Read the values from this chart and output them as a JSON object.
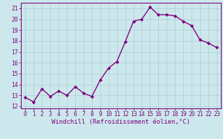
{
  "x": [
    0,
    1,
    2,
    3,
    4,
    5,
    6,
    7,
    8,
    9,
    10,
    11,
    12,
    13,
    14,
    15,
    16,
    17,
    18,
    19,
    20,
    21,
    22,
    23
  ],
  "y": [
    12.8,
    12.4,
    13.6,
    12.9,
    13.4,
    13.0,
    13.8,
    13.2,
    12.9,
    14.4,
    15.5,
    16.1,
    17.9,
    19.8,
    20.0,
    21.1,
    20.4,
    20.4,
    20.3,
    19.8,
    19.4,
    18.1,
    17.8,
    17.4
  ],
  "line_color": "#800080",
  "marker": "D",
  "marker_size": 2.2,
  "bg_color": "#cce8ec",
  "grid_color": "#aacdd4",
  "xlabel": "Windchill (Refroidissement éolien,°C)",
  "xlabel_fontsize": 6.5,
  "ylim": [
    11.8,
    21.5
  ],
  "xlim": [
    -0.5,
    23.5
  ],
  "yticks": [
    12,
    13,
    14,
    15,
    16,
    17,
    18,
    19,
    20,
    21
  ],
  "xticks": [
    0,
    1,
    2,
    3,
    4,
    5,
    6,
    7,
    8,
    9,
    10,
    11,
    12,
    13,
    14,
    15,
    16,
    17,
    18,
    19,
    20,
    21,
    22,
    23
  ],
  "tick_fontsize": 5.8,
  "line_width": 1.0
}
